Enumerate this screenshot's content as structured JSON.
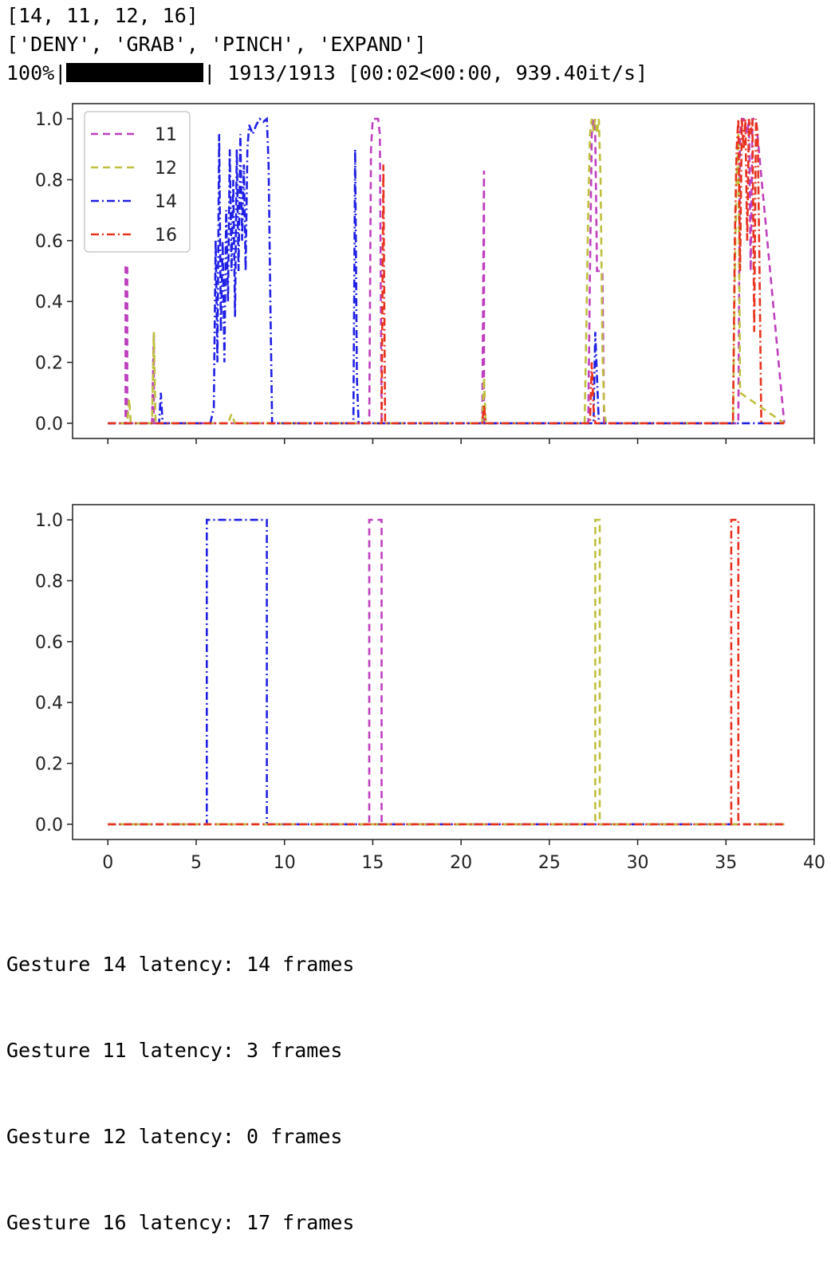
{
  "console_top": {
    "line1": "[14, 11, 12, 16]",
    "line2": "['DENY', 'GRAB', 'PINCH', 'EXPAND']",
    "progress_pct": "100%|",
    "progress_fraction": 1.0,
    "progress_rest": "| 1913/1913 [00:02<00:00, 939.40it/s]"
  },
  "console_bottom": {
    "lines": [
      "Gesture 14 latency: 14 frames",
      "Gesture 11 latency: 3 frames",
      "Gesture 12 latency: 0 frames",
      "Gesture 16 latency: 17 frames"
    ]
  },
  "colors": {
    "11": "#bf3fbf",
    "12": "#bfbf3f",
    "14": "#1f1fe6",
    "16": "#e8321e"
  },
  "chart_data": [
    {
      "type": "line",
      "title": "",
      "xlabel": "",
      "ylabel": "",
      "xlim": [
        -2,
        40
      ],
      "ylim": [
        -0.05,
        1.05
      ],
      "xticks": [
        0,
        5,
        10,
        15,
        20,
        25,
        30,
        35,
        40
      ],
      "yticks": [
        "0.0",
        "0.2",
        "0.4",
        "0.6",
        "0.8",
        "1.0"
      ],
      "show_x_tick_labels": false,
      "legend": "top-left",
      "series": [
        {
          "name": "11",
          "style": "dashed",
          "x": [
            0,
            1.0,
            1.0,
            1.1,
            1.1,
            2.5,
            2.6,
            2.6,
            14.8,
            14.9,
            15.0,
            15.3,
            15.4,
            15.5,
            15.5,
            21.2,
            21.3,
            21.3,
            27.2,
            27.3,
            27.4,
            27.5,
            27.6,
            27.7,
            28.0,
            28.1,
            35.7,
            35.8,
            35.9,
            36.0,
            36.2,
            36.3,
            36.4,
            36.5,
            36.7,
            38.3
          ],
          "y": [
            0,
            0,
            0.52,
            0.52,
            0,
            0,
            0.3,
            0,
            0,
            0.9,
            1.0,
            1.0,
            0.95,
            0.0,
            0,
            0,
            0.83,
            0,
            0,
            0.5,
            0.95,
            1.0,
            0.95,
            0.5,
            0.5,
            0,
            0,
            0.95,
            1.0,
            1.0,
            0.95,
            1.0,
            0.5,
            1.0,
            1.0,
            0
          ]
        },
        {
          "name": "12",
          "style": "dashed",
          "x": [
            0,
            1.1,
            1.2,
            1.3,
            2.5,
            2.6,
            2.7,
            6.8,
            7.0,
            7.2,
            21.2,
            21.3,
            21.4,
            27.0,
            27.1,
            27.2,
            27.3,
            27.4,
            27.5,
            27.6,
            27.7,
            27.8,
            27.9,
            28.0,
            28.1,
            28.2,
            35.4,
            35.5,
            35.6,
            35.7,
            35.8,
            38.3
          ],
          "y": [
            0,
            0,
            0.08,
            0,
            0,
            0.3,
            0,
            0,
            0.03,
            0,
            0,
            0.15,
            0,
            0,
            0.35,
            0.7,
            0.95,
            1.0,
            0.96,
            1.0,
            0.95,
            1.0,
            0.8,
            0.25,
            0.05,
            0,
            0,
            0.5,
            0.8,
            0.95,
            0.1,
            0
          ]
        },
        {
          "name": "14",
          "style": "dashdot",
          "x": [
            0,
            2.9,
            3.0,
            3.1,
            5.8,
            6.0,
            6.1,
            6.2,
            6.3,
            6.4,
            6.5,
            6.6,
            6.7,
            6.8,
            6.9,
            7.0,
            7.1,
            7.2,
            7.3,
            7.4,
            7.5,
            7.6,
            7.7,
            7.8,
            7.9,
            8.0,
            8.2,
            8.4,
            8.6,
            8.8,
            9.0,
            9.1,
            9.2,
            9.3,
            9.4,
            13.9,
            14.0,
            14.1,
            14.2,
            27.5,
            27.6,
            27.7,
            27.8,
            38.3
          ],
          "y": [
            0,
            0,
            0.1,
            0,
            0,
            0.05,
            0.6,
            0.2,
            0.95,
            0.3,
            0.6,
            0.2,
            0.7,
            0.4,
            0.9,
            0.5,
            0.8,
            0.35,
            0.9,
            0.5,
            0.95,
            0.6,
            0.85,
            0.5,
            0.9,
            0.98,
            0.95,
            0.98,
            1.0,
            0.99,
            1.0,
            0.85,
            0.4,
            0.0,
            0,
            0,
            0.9,
            0.15,
            0,
            0,
            0.3,
            0.15,
            0,
            0
          ]
        },
        {
          "name": "16",
          "style": "dashdot",
          "x": [
            0,
            15.5,
            15.6,
            15.7,
            21.2,
            21.3,
            21.4,
            27.3,
            27.4,
            27.5,
            27.6,
            35.4,
            35.5,
            35.6,
            35.7,
            35.8,
            35.9,
            36.0,
            36.1,
            36.2,
            36.3,
            36.4,
            36.5,
            36.6,
            36.7,
            36.8,
            36.9,
            37.0,
            38.3
          ],
          "y": [
            0,
            0,
            0.85,
            0,
            0,
            0.06,
            0,
            0,
            0.2,
            0.05,
            0,
            0,
            0.6,
            0.9,
            1.0,
            0.5,
            1.0,
            0.9,
            1.0,
            0.6,
            1.0,
            0.95,
            1.0,
            0.3,
            1.0,
            0.95,
            0.5,
            0,
            0
          ]
        }
      ]
    },
    {
      "type": "line",
      "title": "",
      "xlabel": "",
      "ylabel": "",
      "xlim": [
        -2,
        40
      ],
      "ylim": [
        -0.05,
        1.05
      ],
      "xticks": [
        0,
        5,
        10,
        15,
        20,
        25,
        30,
        35,
        40
      ],
      "xtick_labels": [
        "0",
        "5",
        "10",
        "15",
        "20",
        "25",
        "30",
        "35",
        "40"
      ],
      "yticks": [
        "0.0",
        "0.2",
        "0.4",
        "0.6",
        "0.8",
        "1.0"
      ],
      "series": [
        {
          "name": "14",
          "style": "dashdot",
          "x": [
            0,
            5.6,
            5.6,
            9.0,
            9.0,
            38.3
          ],
          "y": [
            0,
            0,
            1,
            1,
            0,
            0
          ]
        },
        {
          "name": "11",
          "style": "dashed",
          "x": [
            0,
            14.8,
            14.8,
            15.5,
            15.5,
            38.3
          ],
          "y": [
            0,
            0,
            1,
            1,
            0,
            0
          ]
        },
        {
          "name": "12",
          "style": "dashed",
          "x": [
            0,
            27.6,
            27.6,
            27.85,
            27.85,
            38.3
          ],
          "y": [
            0,
            0,
            1,
            1,
            0,
            0
          ]
        },
        {
          "name": "16",
          "style": "dashdot",
          "x": [
            0,
            35.3,
            35.3,
            35.7,
            35.7,
            38.3
          ],
          "y": [
            0,
            0,
            1,
            1,
            0,
            0
          ]
        }
      ]
    }
  ]
}
